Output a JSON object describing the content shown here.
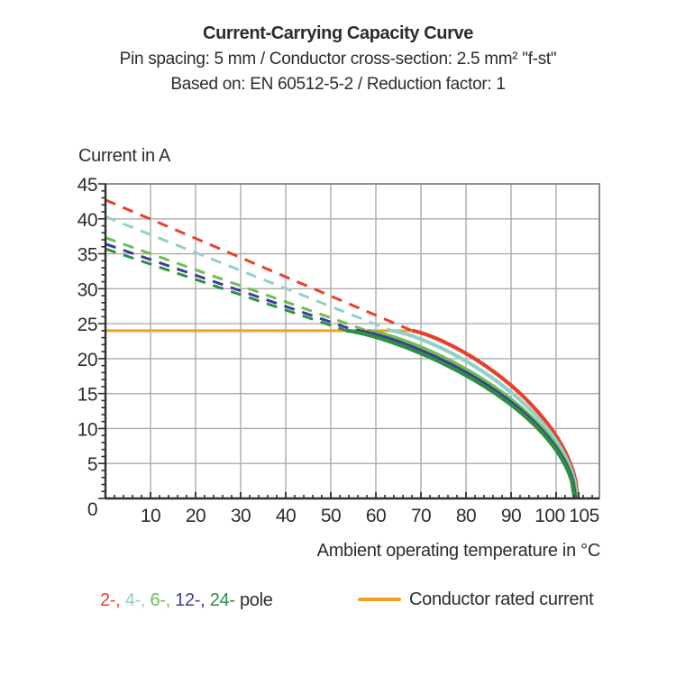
{
  "header": {
    "title": "Current-Carrying Capacity Curve",
    "subtitle": "Pin spacing: 5 mm / Conductor cross-section: 2.5 mm² \"f-st\"",
    "basis": "Based on: EN 60512-5-2 / Reduction factor: 1"
  },
  "legend": {
    "separator": ", ",
    "suffix": " pole",
    "rated_label": "Conductor rated current"
  },
  "chart_data": {
    "type": "line",
    "title": "Current-Carrying Capacity Curve",
    "xlabel": "Ambient operating temperature in °C",
    "ylabel": "Current in A",
    "xlim": [
      0,
      109.6
    ],
    "ylim": [
      0,
      45
    ],
    "x_major_ticks": [
      10,
      20,
      30,
      40,
      50,
      60,
      70,
      80,
      90,
      100,
      105
    ],
    "x_gridlines": [
      10,
      20,
      30,
      40,
      50,
      60,
      70,
      80,
      90,
      100
    ],
    "x_minor_step": 2,
    "y_major_step": 5,
    "y_minor_step": 1,
    "grid": true,
    "legend_position": "bottom",
    "rated_current": {
      "value": 24,
      "x_start": 0,
      "x_end": 68,
      "color": "#f5a01e",
      "label": "Conductor rated current"
    },
    "series": [
      {
        "name": "2-pole",
        "legend": "2-",
        "color": "#e8402a",
        "style": "dashed-then-solid",
        "y_at_0C": 42.7,
        "x_at_rated": 68.0,
        "x_at_zero": 104.8
      },
      {
        "name": "4-pole",
        "legend": "4-",
        "color": "#93cfcb",
        "style": "dashed-then-solid",
        "y_at_0C": 40.3,
        "x_at_rated": 63.5,
        "x_at_zero": 104.6
      },
      {
        "name": "6-pole",
        "legend": "6-",
        "color": "#6dbe53",
        "style": "dashed-then-solid",
        "y_at_0C": 37.3,
        "x_at_rated": 58.0,
        "x_at_zero": 104.4
      },
      {
        "name": "12-pole",
        "legend": "12-",
        "color": "#3e3c99",
        "style": "dashed-then-solid",
        "y_at_0C": 36.4,
        "x_at_rated": 55.5,
        "x_at_zero": 104.25
      },
      {
        "name": "24-pole",
        "legend": "24-",
        "color": "#2e8f43",
        "style": "dashed-then-solid",
        "y_at_0C": 35.7,
        "x_at_rated": 53.5,
        "x_at_zero": 104.1
      }
    ],
    "curve_model": "Dashed: linear from (0, y_at_0C) to (x_at_rated, 24). Solid: y = 24*(1-t^1.3)^0.55 with t from 0 to 1 between x_at_rated and x_at_zero."
  }
}
